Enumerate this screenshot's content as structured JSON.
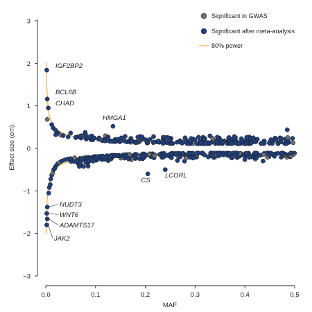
{
  "chart_data": {
    "type": "scatter",
    "xlabel": "MAF",
    "ylabel": "Effect size (cm)",
    "xlim": [
      0,
      0.5
    ],
    "ylim": [
      -3,
      3
    ],
    "x_ticks": [
      0,
      0.1,
      0.2,
      0.3,
      0.4,
      0.5
    ],
    "x_tick_labels": [
      "0.0",
      "0.1",
      "0.2",
      "0.3",
      "0.4",
      "0.5"
    ],
    "y_ticks": [
      -3,
      -2,
      -1,
      0,
      1,
      2,
      3
    ],
    "y_tick_labels": [
      "−3",
      "−2",
      "−1",
      "0",
      "1",
      "2",
      "3"
    ],
    "grid": false,
    "legend_position": "top-right",
    "colors": {
      "gwas": "#6f6f6f",
      "meta": "#213f7a",
      "power": "#e3b23c"
    },
    "legend": [
      {
        "label": "Significant in GWAS",
        "kind": "point",
        "color": "#6f6f6f"
      },
      {
        "label": "Significant after meta-analysis",
        "kind": "point",
        "color": "#213f7a"
      },
      {
        "label": "80% power",
        "kind": "line",
        "color": "#e3b23c"
      }
    ],
    "power_curve": {
      "k": 0.0045,
      "x_min": 0.0011,
      "positive": [
        [
          0.0011,
          3
        ],
        [
          0.0015,
          2.57
        ],
        [
          0.002,
          2.23
        ],
        [
          0.003,
          1.82
        ],
        [
          0.005,
          1.41
        ],
        [
          0.01,
          0.99
        ],
        [
          0.02,
          0.69
        ],
        [
          0.05,
          0.42
        ],
        [
          0.1,
          0.29
        ],
        [
          0.2,
          0.19
        ],
        [
          0.3,
          0.15
        ],
        [
          0.4,
          0.14
        ],
        [
          0.5,
          0.13
        ]
      ],
      "negative": [
        [
          0.0011,
          -3
        ],
        [
          0.0015,
          -2.57
        ],
        [
          0.002,
          -2.23
        ],
        [
          0.003,
          -1.82
        ],
        [
          0.005,
          -1.41
        ],
        [
          0.01,
          -0.99
        ],
        [
          0.02,
          -0.69
        ],
        [
          0.05,
          -0.42
        ],
        [
          0.1,
          -0.29
        ],
        [
          0.2,
          -0.19
        ],
        [
          0.3,
          -0.15
        ],
        [
          0.4,
          -0.14
        ],
        [
          0.5,
          -0.13
        ]
      ]
    },
    "labeled_points": [
      {
        "gene": "IGF2BP2",
        "x": 0.002,
        "y": 1.84
      },
      {
        "gene": "BCL6B",
        "x": 0.003,
        "y": 1.16
      },
      {
        "gene": "CHAD",
        "x": 0.005,
        "y": 0.95
      },
      {
        "gene": "HMGA1",
        "x": 0.135,
        "y": 0.52
      },
      {
        "gene": "CS",
        "x": 0.205,
        "y": -0.6
      },
      {
        "gene": "LCORL",
        "x": 0.24,
        "y": -0.5
      },
      {
        "gene": "NUDT3",
        "x": 0.003,
        "y": -1.38
      },
      {
        "gene": "WNT6",
        "x": 0.002,
        "y": -1.53
      },
      {
        "gene": "ADAMTS17",
        "x": 0.003,
        "y": -1.66
      },
      {
        "gene": "JAK2",
        "x": 0.002,
        "y": -1.8
      }
    ],
    "low_maf_points": [
      {
        "x": 0.003,
        "y": 0.68,
        "series": "gwas"
      },
      {
        "x": 0.012,
        "y": 0.56,
        "series": "meta"
      },
      {
        "x": 0.015,
        "y": 0.48,
        "series": "meta"
      },
      {
        "x": 0.02,
        "y": 0.42,
        "series": "meta"
      },
      {
        "x": 0.025,
        "y": 0.36,
        "series": "meta"
      },
      {
        "x": 0.03,
        "y": 0.31,
        "series": "gwas"
      },
      {
        "x": 0.035,
        "y": 0.3,
        "series": "meta"
      },
      {
        "x": 0.045,
        "y": 0.27,
        "series": "meta"
      },
      {
        "x": 0.05,
        "y": 0.36,
        "series": "meta"
      },
      {
        "x": 0.06,
        "y": 0.26,
        "series": "meta"
      },
      {
        "x": 0.02,
        "y": 0.32,
        "series": "meta"
      },
      {
        "x": 0.006,
        "y": -1.05,
        "series": "meta"
      },
      {
        "x": 0.007,
        "y": -0.92,
        "series": "meta"
      },
      {
        "x": 0.009,
        "y": -0.85,
        "series": "meta"
      },
      {
        "x": 0.01,
        "y": -0.72,
        "series": "meta"
      },
      {
        "x": 0.012,
        "y": -0.63,
        "series": "meta"
      },
      {
        "x": 0.014,
        "y": -0.58,
        "series": "gwas"
      },
      {
        "x": 0.016,
        "y": -0.5,
        "series": "meta"
      },
      {
        "x": 0.018,
        "y": -0.47,
        "series": "meta"
      },
      {
        "x": 0.02,
        "y": -0.42,
        "series": "meta"
      },
      {
        "x": 0.024,
        "y": -0.36,
        "series": "meta"
      },
      {
        "x": 0.028,
        "y": -0.33,
        "series": "gwas"
      },
      {
        "x": 0.032,
        "y": -0.3,
        "series": "meta"
      },
      {
        "x": 0.038,
        "y": -0.27,
        "series": "meta"
      },
      {
        "x": 0.044,
        "y": -0.25,
        "series": "meta"
      },
      {
        "x": 0.05,
        "y": -0.24,
        "series": "meta"
      },
      {
        "x": 0.058,
        "y": -0.22,
        "series": "gwas"
      },
      {
        "x": 0.07,
        "y": -0.34,
        "series": "meta"
      },
      {
        "x": 0.085,
        "y": -0.42,
        "series": "meta"
      },
      {
        "x": 0.095,
        "y": -0.3,
        "series": "meta"
      }
    ],
    "bulk_bands": {
      "positive": {
        "x_range": [
          0.06,
          0.5
        ],
        "count": 240,
        "y_base": 0.13,
        "spread": 0.16,
        "gwas_fraction": 0.07
      },
      "negative": {
        "x_range": [
          0.05,
          0.5
        ],
        "count": 300,
        "y_base": -0.13,
        "spread": 0.12,
        "gwas_fraction": 0.15
      }
    }
  }
}
